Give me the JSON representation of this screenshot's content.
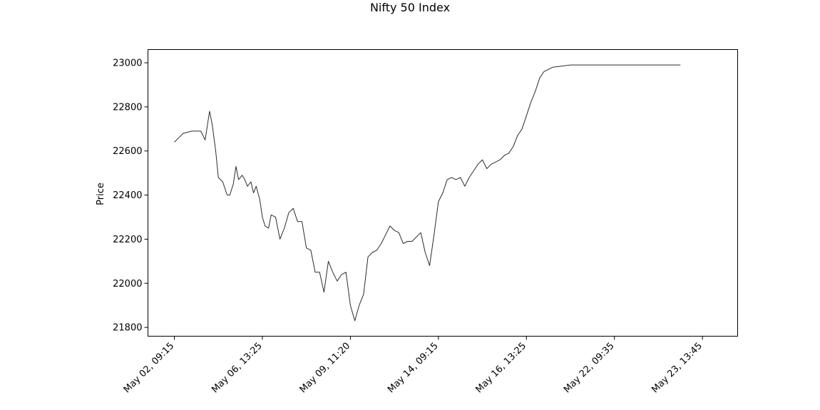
{
  "chart_data": {
    "type": "line",
    "title": "Nifty 50 Index",
    "xlabel": "",
    "ylabel": "Price",
    "ylim": [
      21760,
      23060
    ],
    "yticks": [
      21800,
      22000,
      22200,
      22400,
      22600,
      22800,
      23000
    ],
    "xlim": [
      -0.3,
      6.4
    ],
    "xticks": [
      {
        "pos": 0,
        "label": "May 02, 09:15"
      },
      {
        "pos": 1,
        "label": "May 06, 13:25"
      },
      {
        "pos": 2,
        "label": "May 09, 11:20"
      },
      {
        "pos": 3,
        "label": "May 14, 09:15"
      },
      {
        "pos": 4,
        "label": "May 16, 13:25"
      },
      {
        "pos": 5,
        "label": "May 22, 09:35"
      },
      {
        "pos": 6,
        "label": "May 23, 13:45"
      }
    ],
    "grid": false,
    "line_color": "#2b2b2b",
    "series": [
      {
        "name": "",
        "segments": [
          {
            "x": [
              0.0,
              0.05,
              0.1,
              0.2,
              0.3,
              0.35,
              0.4,
              0.43,
              0.47,
              0.5,
              0.55,
              0.6,
              0.63,
              0.67,
              0.7,
              0.73,
              0.77,
              0.8,
              0.83,
              0.87,
              0.9,
              0.93,
              0.97,
              1.0,
              1.03,
              1.07,
              1.1,
              1.15,
              1.2,
              1.25,
              1.3,
              1.35,
              1.4,
              1.45,
              1.5,
              1.55,
              1.6,
              1.65,
              1.7,
              1.75,
              1.8,
              1.85,
              1.9,
              1.95,
              2.0,
              2.05,
              2.1,
              2.15,
              2.2,
              2.25,
              2.3,
              2.35,
              2.4,
              2.45,
              2.5,
              2.55,
              2.6,
              2.65,
              2.7,
              2.75,
              2.8,
              2.85,
              2.9,
              2.95,
              3.0,
              3.05,
              3.1,
              3.15,
              3.2,
              3.25,
              3.3,
              3.35,
              3.4,
              3.45,
              3.5,
              3.55,
              3.6,
              3.65,
              3.7,
              3.75,
              3.8,
              3.85,
              3.9,
              3.95,
              4.0,
              4.05,
              4.1,
              4.15,
              4.2,
              4.3,
              4.4,
              4.5,
              4.6,
              4.7,
              4.8,
              4.9,
              5.0,
              5.1,
              5.2,
              5.3,
              5.35,
              5.4,
              5.45,
              5.5,
              5.55,
              5.6,
              5.65,
              5.7,
              5.75
            ],
            "y": [
              22640,
              22660,
              22680,
              22690,
              22690,
              22650,
              22780,
              22720,
              22600,
              22480,
              22460,
              22400,
              22400,
              22450,
              22530,
              22470,
              22490,
              22470,
              22440,
              22460,
              22410,
              22440,
              22380,
              22300,
              22260,
              22250,
              22310,
              22300,
              22200,
              22250,
              22320,
              22340,
              22280,
              22280,
              22160,
              22150,
              22050,
              22050,
              21960,
              22100,
              22050,
              22010,
              22040,
              22050,
              21900,
              21830,
              21900,
              21950,
              22120,
              22140,
              22150,
              22180,
              22220,
              22260,
              22240,
              22230,
              22180,
              22190,
              22190,
              22210,
              22230,
              22140,
              22080,
              22220,
              22370,
              22410,
              22470,
              22480,
              22470,
              22480,
              22440,
              22480,
              22510,
              22540,
              22560,
              22520,
              22540,
              22550,
              22560,
              22580,
              22590,
              22620,
              22670,
              22700,
              22760,
              22820,
              22870,
              22930,
              22960,
              22980,
              22985,
              22990,
              22990,
              22990,
              22990,
              22990,
              22990,
              22990,
              22990,
              22990,
              22990,
              22990,
              22990,
              22990,
              22990,
              22990,
              22990,
              22990,
              22990
            ]
          }
        ]
      }
    ]
  }
}
